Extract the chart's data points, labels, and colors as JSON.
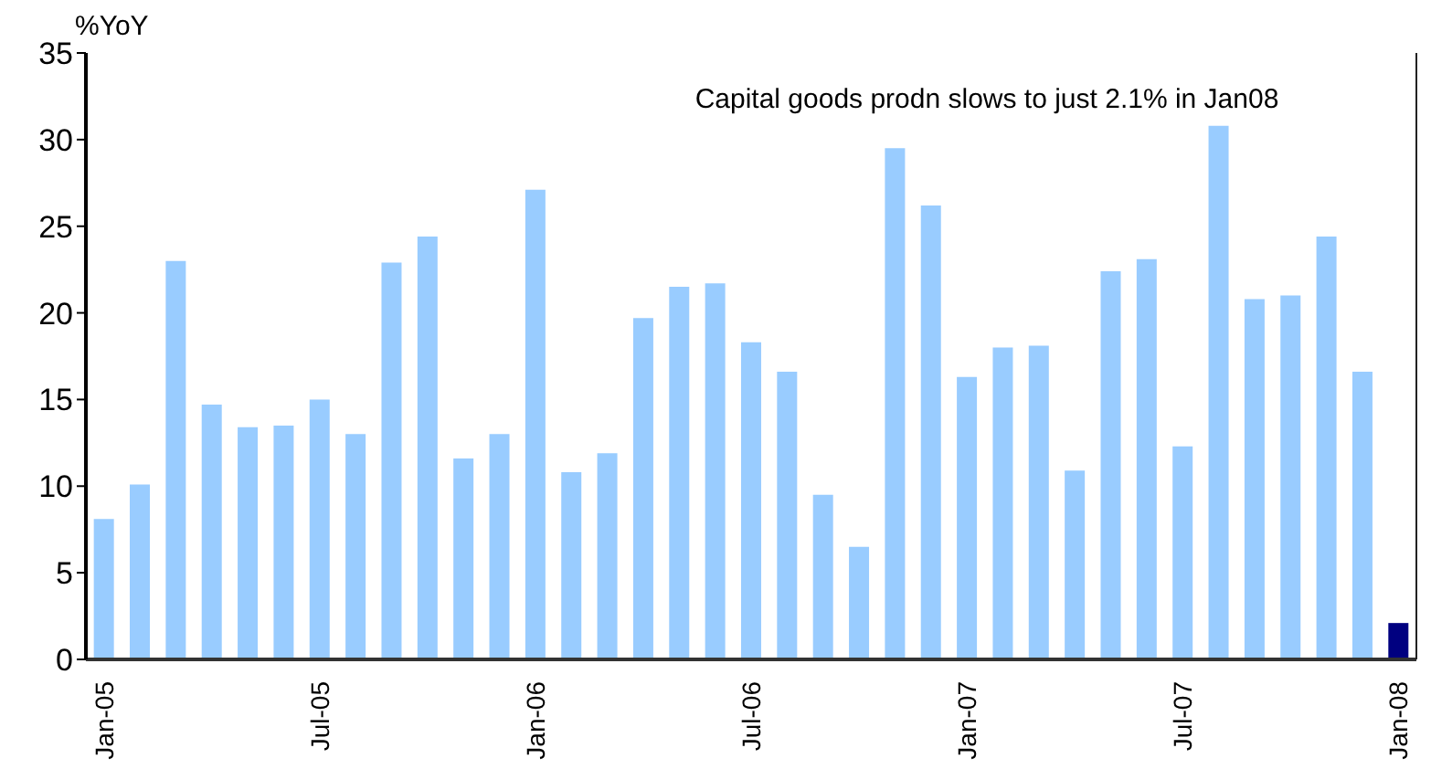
{
  "chart_data": {
    "type": "bar",
    "ylabel": "%YoY",
    "annotations": [
      "Capital goods prodn slows to just 2.1% in Jan08"
    ],
    "categories": [
      "Jan-05",
      null,
      null,
      null,
      null,
      null,
      "Jul-05",
      null,
      null,
      null,
      null,
      null,
      "Jan-06",
      null,
      null,
      null,
      null,
      null,
      "Jul-06",
      null,
      null,
      null,
      null,
      null,
      "Jan-07",
      null,
      null,
      null,
      null,
      null,
      "Jul-07",
      null,
      null,
      null,
      null,
      null,
      "Jan-08"
    ],
    "values": [
      8.1,
      10.1,
      23,
      14.7,
      13.4,
      13.5,
      15,
      13,
      22.9,
      24.4,
      11.6,
      13,
      27.1,
      10.8,
      11.9,
      19.7,
      21.5,
      21.7,
      18.3,
      16.6,
      9.5,
      6.5,
      29.5,
      26.2,
      16.3,
      18,
      18.1,
      10.9,
      22.4,
      23.1,
      12.3,
      30.8,
      20.8,
      21,
      24.4,
      16.6,
      2.1
    ],
    "colors": [
      "#99ccff",
      "#99ccff",
      "#99ccff",
      "#99ccff",
      "#99ccff",
      "#99ccff",
      "#99ccff",
      "#99ccff",
      "#99ccff",
      "#99ccff",
      "#99ccff",
      "#99ccff",
      "#99ccff",
      "#99ccff",
      "#99ccff",
      "#99ccff",
      "#99ccff",
      "#99ccff",
      "#99ccff",
      "#99ccff",
      "#99ccff",
      "#99ccff",
      "#99ccff",
      "#99ccff",
      "#99ccff",
      "#99ccff",
      "#99ccff",
      "#99ccff",
      "#99ccff",
      "#99ccff",
      "#99ccff",
      "#99ccff",
      "#99ccff",
      "#99ccff",
      "#99ccff",
      "#99ccff",
      "#000080"
    ],
    "ylim": [
      0,
      35
    ],
    "yticks": [
      0,
      5,
      10,
      15,
      20,
      25,
      30,
      35
    ],
    "grid": false,
    "legend": false
  }
}
